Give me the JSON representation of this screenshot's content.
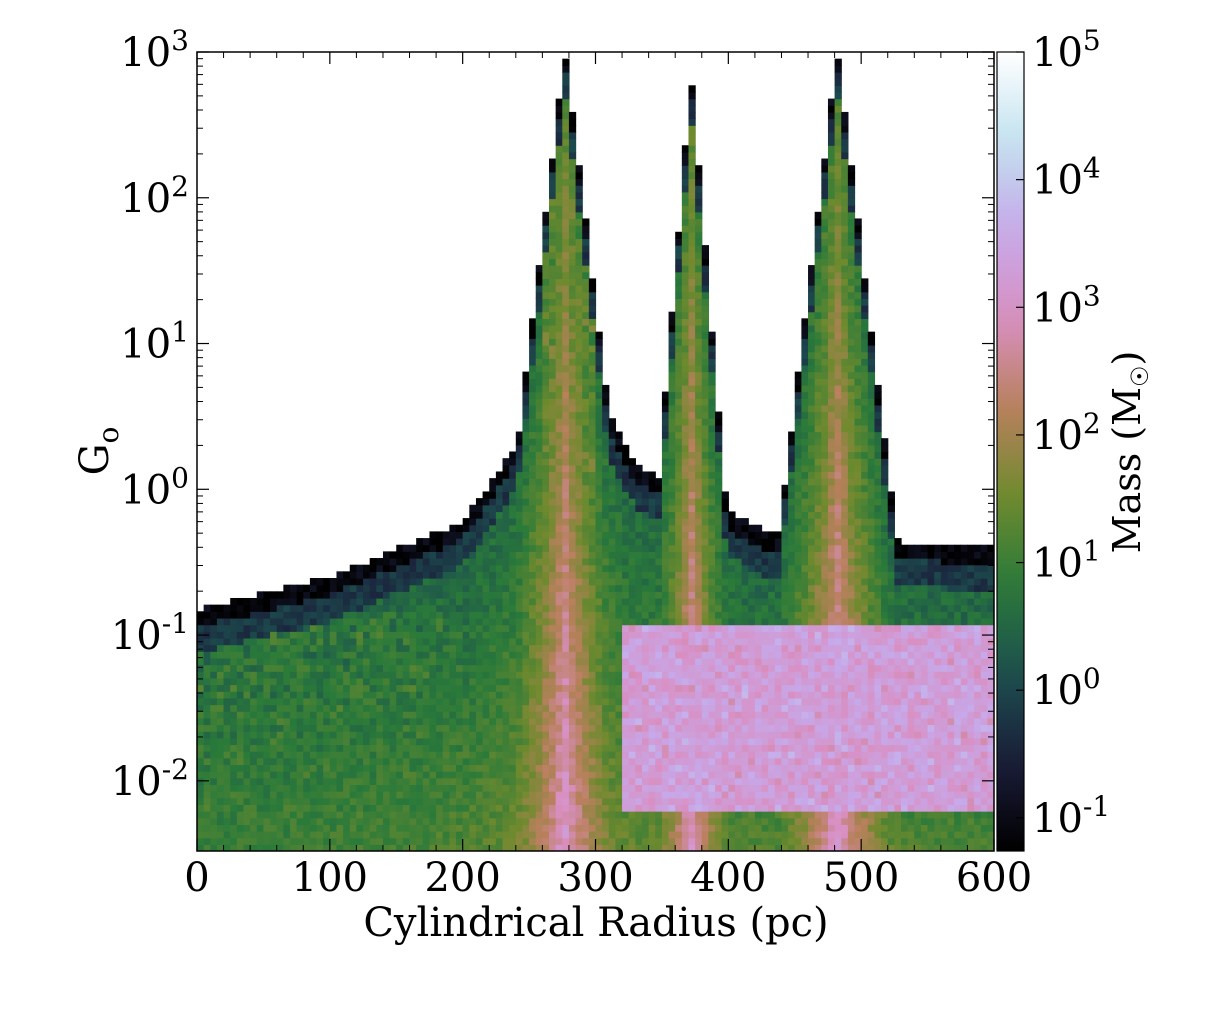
{
  "chart_data": {
    "type": "heatmap",
    "title": "",
    "xlabel": "Cylindrical Radius  (pc)",
    "ylabel": "Go",
    "ylabel_parts": {
      "main": "G",
      "sub": "o"
    },
    "x_scale": "linear",
    "y_scale": "log",
    "xlim": [
      0,
      600
    ],
    "ylim": [
      0.0033,
      1000
    ],
    "x_ticks": [
      {
        "value": 0,
        "label": "0"
      },
      {
        "value": 100,
        "label": "100"
      },
      {
        "value": 200,
        "label": "200"
      },
      {
        "value": 300,
        "label": "300"
      },
      {
        "value": 400,
        "label": "400"
      },
      {
        "value": 500,
        "label": "500"
      },
      {
        "value": 600,
        "label": "600"
      }
    ],
    "y_ticks": [
      {
        "value": 0.01,
        "base": "10",
        "exp": "-2"
      },
      {
        "value": 0.1,
        "base": "10",
        "exp": "-1"
      },
      {
        "value": 1,
        "base": "10",
        "exp": "0"
      },
      {
        "value": 10,
        "base": "10",
        "exp": "1"
      },
      {
        "value": 100,
        "base": "10",
        "exp": "2"
      },
      {
        "value": 1000,
        "base": "10",
        "exp": "3"
      }
    ],
    "colorbar": {
      "label": "Mass (M☉)",
      "label_parts": {
        "main": "Mass (M",
        "sub": "☉",
        "close": ")"
      },
      "scale": "log",
      "range": [
        0.055,
        100000
      ],
      "ticks": [
        {
          "value": 0.1,
          "base": "10",
          "exp": "-1"
        },
        {
          "value": 1,
          "base": "10",
          "exp": "0"
        },
        {
          "value": 10,
          "base": "10",
          "exp": "1"
        },
        {
          "value": 100,
          "base": "10",
          "exp": "2"
        },
        {
          "value": 1000,
          "base": "10",
          "exp": "3"
        },
        {
          "value": 10000,
          "base": "10",
          "exp": "4"
        },
        {
          "value": 100000,
          "base": "10",
          "exp": "5"
        }
      ],
      "colormap": "cubehelix",
      "colormap_stops": [
        "#000000",
        "#1b1d3a",
        "#1c4f4f",
        "#2a7a3a",
        "#6f8a2e",
        "#b9805d",
        "#d98fc2",
        "#c6a9ea",
        "#c3e2ef",
        "#ffffff"
      ]
    },
    "peaks": [
      {
        "radius_pc": 277,
        "G0_max": 1000,
        "width_pc": 12
      },
      {
        "radius_pc": 372,
        "G0_max": 700,
        "width_pc": 8
      },
      {
        "radius_pc": 482,
        "G0_max": 1000,
        "width_pc": 12
      }
    ],
    "envelope": [
      {
        "radius_pc": 0,
        "G0_upper": 0.15
      },
      {
        "radius_pc": 100,
        "G0_upper": 0.25
      },
      {
        "radius_pc": 200,
        "G0_upper": 0.6
      },
      {
        "radius_pc": 240,
        "G0_upper": 2
      },
      {
        "radius_pc": 265,
        "G0_upper": 20
      },
      {
        "radius_pc": 330,
        "G0_upper": 1.5
      },
      {
        "radius_pc": 430,
        "G0_upper": 0.5
      },
      {
        "radius_pc": 600,
        "G0_upper": 0.4
      }
    ],
    "mass_regions": [
      {
        "description": "high-mass band",
        "radius_pc": [
          320,
          600
        ],
        "G0": [
          0.006,
          0.12
        ],
        "mass_Msun": 3000
      },
      {
        "description": "low radius, low G0",
        "radius_pc": [
          0,
          200
        ],
        "G0": [
          0.005,
          0.15
        ],
        "mass_Msun": 10
      },
      {
        "description": "peak cores",
        "radius_pc": [
          260,
          300
        ],
        "G0": [
          1,
          100
        ],
        "mass_Msun": 30
      }
    ]
  }
}
